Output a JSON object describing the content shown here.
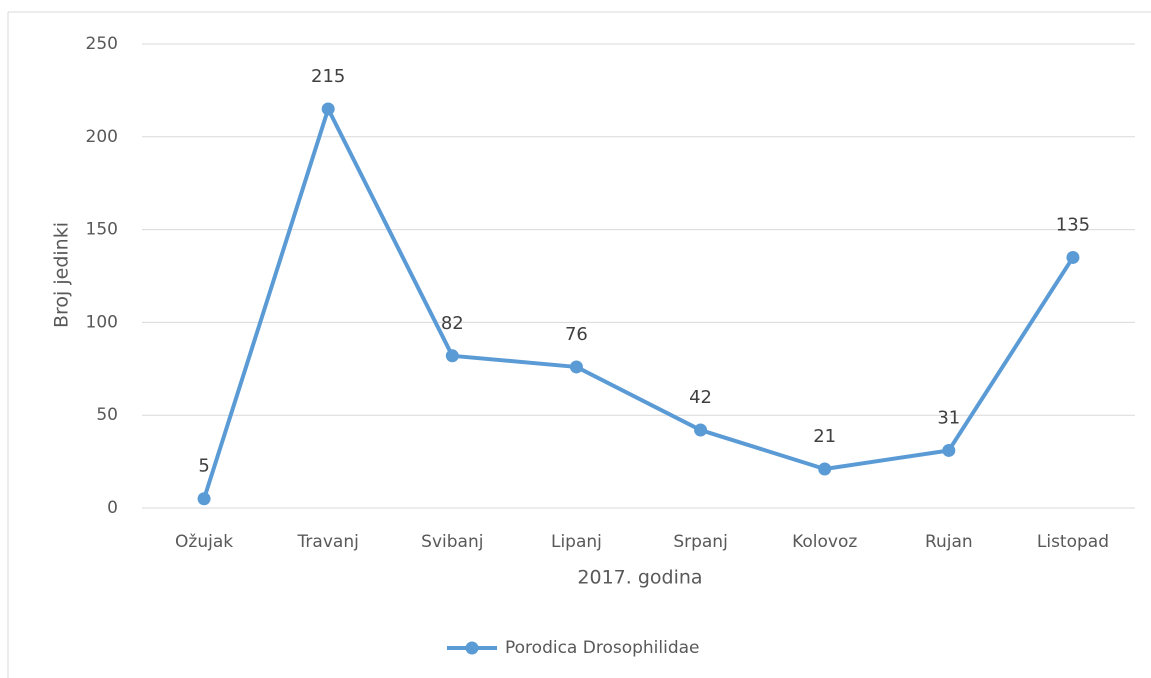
{
  "chart_data": {
    "type": "line",
    "categories": [
      "Ožujak",
      "Travanj",
      "Svibanj",
      "Lipanj",
      "Srpanj",
      "Kolovoz",
      "Rujan",
      "Listopad"
    ],
    "series": [
      {
        "name": "Porodica Drosophilidae",
        "color": "#5b9bd5",
        "values": [
          5,
          215,
          82,
          76,
          42,
          21,
          31,
          135
        ]
      }
    ],
    "ylim": [
      0,
      250
    ],
    "yticks": [
      0,
      50,
      100,
      150,
      200,
      250
    ],
    "grid": true,
    "xlabel": "2017. godina",
    "ylabel": "Broj jedinki",
    "legend": "bottom"
  }
}
